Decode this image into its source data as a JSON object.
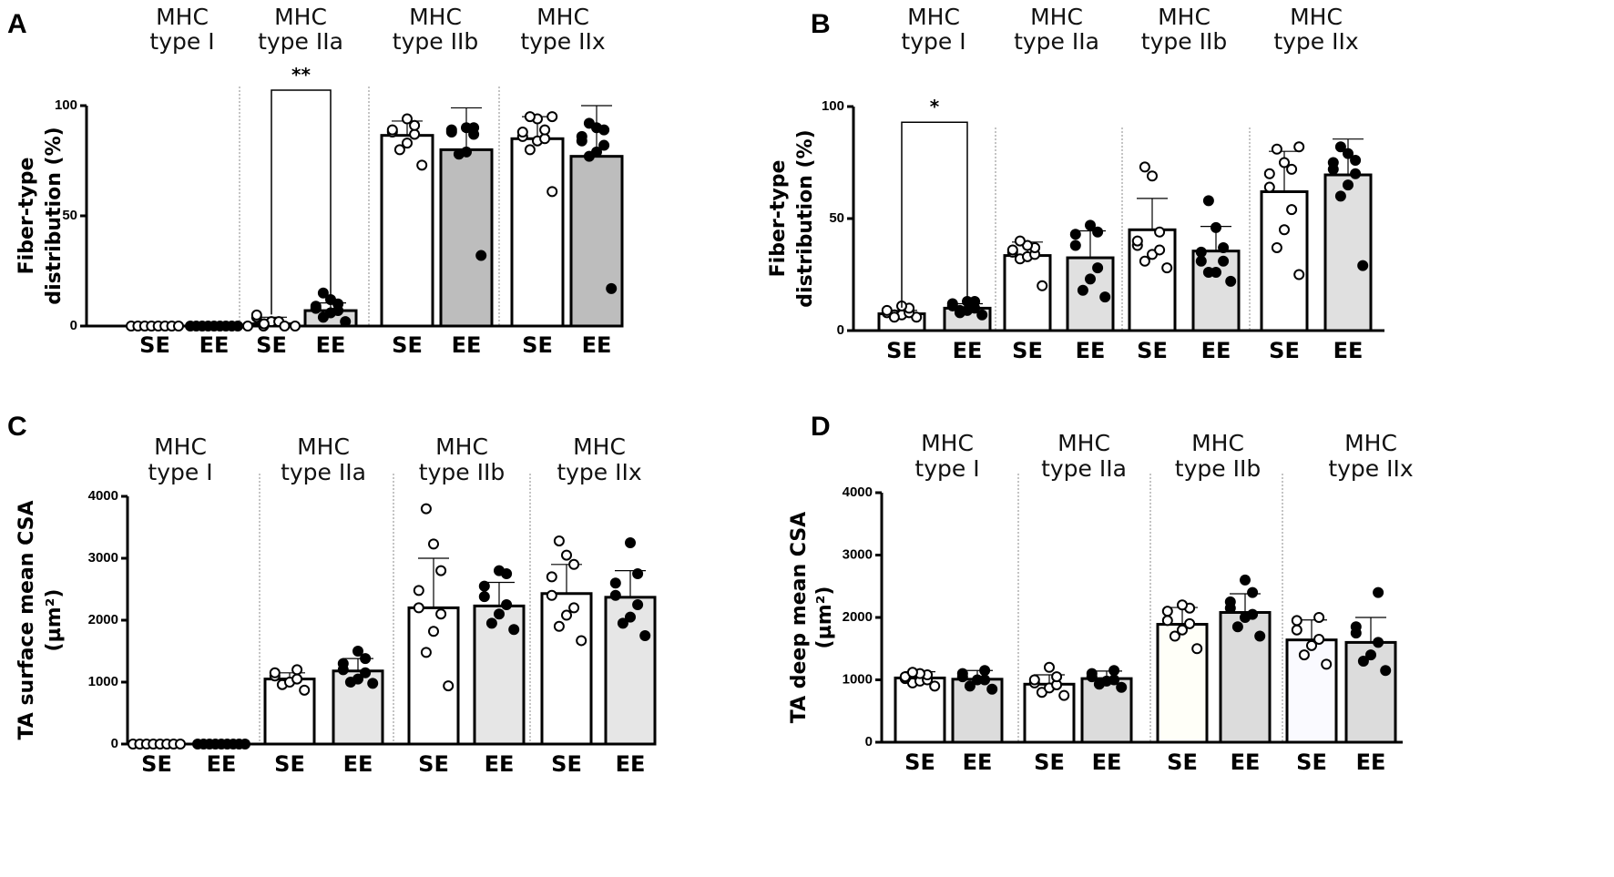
{
  "chart_data": [
    {
      "panel": "A",
      "type": "bar",
      "ylabel": [
        "Fiber-type",
        "distribution (%)"
      ],
      "ylim": [
        0,
        100
      ],
      "yticks": [
        "0",
        "50",
        "100"
      ],
      "ytick_values": [
        0,
        50,
        100
      ],
      "groups": [
        "MHC",
        "type I",
        "MHC",
        "type IIa",
        "MHC",
        "type IIb",
        "MHC",
        "type IIx"
      ],
      "categories": [
        "SE",
        "EE",
        "SE",
        "EE",
        "SE",
        "EE",
        "SE",
        "EE"
      ],
      "means": [
        0,
        0,
        1,
        7,
        86.5,
        80,
        85,
        77
      ],
      "sd": [
        0,
        0,
        3,
        3.5,
        6.5,
        19,
        10,
        23
      ],
      "fills": [
        "#ffffff",
        "#bdbdbd",
        "#ffffff",
        "#d9d9d9",
        "#ffffff",
        "#bdbdbd",
        "#ffffff",
        "#bdbdbd"
      ],
      "points": [
        [
          0,
          0,
          0,
          0,
          0,
          0,
          0,
          0
        ],
        [
          0,
          0,
          0,
          0,
          0,
          0,
          0,
          0,
          0
        ],
        [
          0,
          1,
          2,
          0,
          4,
          5,
          2,
          0,
          1,
          0
        ],
        [
          2,
          4,
          6,
          7,
          8,
          9,
          10,
          12,
          15
        ],
        [
          73,
          80,
          83,
          87,
          88,
          89,
          91,
          94
        ],
        [
          32,
          78,
          79,
          87,
          88,
          89,
          90,
          90
        ],
        [
          61,
          80,
          84,
          85,
          86,
          88,
          89,
          94,
          95,
          95
        ],
        [
          17,
          77,
          79,
          82,
          84,
          86,
          89,
          90,
          92
        ]
      ],
      "significance": {
        "label": "**",
        "between": [
          2,
          3
        ],
        "y": 107
      }
    },
    {
      "panel": "B",
      "type": "bar",
      "ylabel": [
        "Fiber-type",
        "distribution (%)"
      ],
      "ylim": [
        0,
        100
      ],
      "yticks": [
        "0",
        "50",
        "100"
      ],
      "ytick_values": [
        0,
        50,
        100
      ],
      "groups": [
        "MHC",
        "type I",
        "MHC",
        "type IIa",
        "MHC",
        "type IIb",
        "MHC",
        "type IIx"
      ],
      "categories": [
        "SE",
        "EE",
        "SE",
        "EE",
        "SE",
        "EE",
        "SE",
        "EE"
      ],
      "means": [
        7.5,
        10,
        33.5,
        32.5,
        45,
        35.5,
        62,
        69.5
      ],
      "sd": [
        1.5,
        2,
        6,
        12,
        14,
        11,
        18,
        16
      ],
      "fills": [
        "#ffffff",
        "#e0e0e0",
        "#ffffff",
        "#e0e0e0",
        "#ffffff",
        "#e0e0e0",
        "#ffffff",
        "#e0e0e0"
      ],
      "points": [
        [
          6,
          7,
          7,
          8,
          8,
          9,
          10,
          11,
          6
        ],
        [
          7,
          8,
          9,
          10,
          11,
          12,
          13,
          13,
          9
        ],
        [
          20,
          32,
          33,
          34,
          35,
          36,
          37,
          38,
          40
        ],
        [
          15,
          18,
          23,
          28,
          38,
          43,
          44,
          47
        ],
        [
          28,
          31,
          34,
          36,
          38,
          40,
          44,
          69,
          73
        ],
        [
          22,
          26,
          26,
          31,
          31,
          35,
          37,
          46,
          58
        ],
        [
          25,
          37,
          45,
          54,
          64,
          70,
          72,
          75,
          81,
          82
        ],
        [
          29,
          60,
          65,
          70,
          72,
          75,
          76,
          79,
          82
        ]
      ],
      "significance": {
        "label": "*",
        "between": [
          0,
          1
        ],
        "y": 93
      }
    },
    {
      "panel": "C",
      "type": "bar",
      "ylabel": [
        "TA surface mean CSA",
        "(µm²)"
      ],
      "ylim": [
        0,
        4000
      ],
      "yticks": [
        "0",
        "1000",
        "2000",
        "3000",
        "4000"
      ],
      "ytick_values": [
        0,
        1000,
        2000,
        3000,
        4000
      ],
      "groups": [
        "MHC",
        "type I",
        "MHC",
        "type IIa",
        "MHC",
        "type IIb",
        "MHC",
        "type IIx"
      ],
      "categories": [
        "SE",
        "EE",
        "SE",
        "EE",
        "SE",
        "EE",
        "SE",
        "EE"
      ],
      "means": [
        0,
        0,
        1050,
        1180,
        2200,
        2230,
        2430,
        2370
      ],
      "sd": [
        0,
        0,
        100,
        200,
        800,
        380,
        470,
        430
      ],
      "fills": [
        "#ffffff",
        "#ffffff",
        "#ffffff",
        "#e6e6e6",
        "#ffffff",
        "#e6e6e6",
        "#ffffff",
        "#e6e6e6"
      ],
      "points": [
        [
          0,
          0,
          0,
          0,
          0,
          0,
          0,
          0
        ],
        [
          0,
          0,
          0,
          0,
          0,
          0,
          0,
          0,
          0
        ],
        [
          870,
          960,
          1000,
          1050,
          1100,
          1150,
          1200
        ],
        [
          980,
          1000,
          1050,
          1150,
          1200,
          1300,
          1380,
          1500
        ],
        [
          940,
          1480,
          1820,
          2100,
          2200,
          2480,
          2800,
          3230,
          3800
        ],
        [
          1850,
          1950,
          2100,
          2250,
          2380,
          2550,
          2750,
          2800
        ],
        [
          1670,
          1900,
          2080,
          2200,
          2400,
          2700,
          2900,
          3050,
          3280
        ],
        [
          1750,
          1950,
          2050,
          2250,
          2400,
          2600,
          2750,
          3250
        ]
      ]
    },
    {
      "panel": "D",
      "type": "bar",
      "ylabel": [
        "TA deep mean CSA",
        "(µm²)"
      ],
      "ylim": [
        0,
        4000
      ],
      "yticks": [
        "0",
        "1000",
        "2000",
        "3000",
        "4000"
      ],
      "ytick_values": [
        0,
        1000,
        2000,
        3000,
        4000
      ],
      "groups": [
        "MHC",
        "type I",
        "MHC",
        "type IIa",
        "MHC",
        "type IIb",
        "MHC",
        "type IIx"
      ],
      "categories": [
        "SE",
        "EE",
        "SE",
        "EE",
        "SE",
        "EE",
        "SE",
        "EE"
      ],
      "means": [
        1030,
        1010,
        930,
        1020,
        1890,
        2080,
        1640,
        1600
      ],
      "sd": [
        100,
        140,
        150,
        120,
        270,
        300,
        320,
        400
      ],
      "fills": [
        "#ffffff",
        "#dcdcdc",
        "#ffffff",
        "#dcdcdc",
        "#fffff8",
        "#dcdcdc",
        "#fafaff",
        "#dcdcdc"
      ],
      "points": [
        [
          900,
          950,
          980,
          1000,
          1020,
          1050,
          1080,
          1100,
          1120
        ],
        [
          850,
          900,
          1000,
          1000,
          1050,
          1100,
          1150
        ],
        [
          750,
          800,
          870,
          920,
          950,
          1000,
          1050,
          1200
        ],
        [
          880,
          930,
          980,
          1000,
          1050,
          1100,
          1150
        ],
        [
          1500,
          1700,
          1800,
          1900,
          1950,
          2100,
          2150,
          2200
        ],
        [
          1700,
          1850,
          2000,
          2050,
          2150,
          2250,
          2400,
          2600
        ],
        [
          1250,
          1400,
          1550,
          1650,
          1800,
          1950,
          2000
        ],
        [
          1150,
          1300,
          1400,
          1600,
          1750,
          1850,
          2400
        ]
      ]
    }
  ],
  "panel_labels": [
    "A",
    "B",
    "C",
    "D"
  ]
}
